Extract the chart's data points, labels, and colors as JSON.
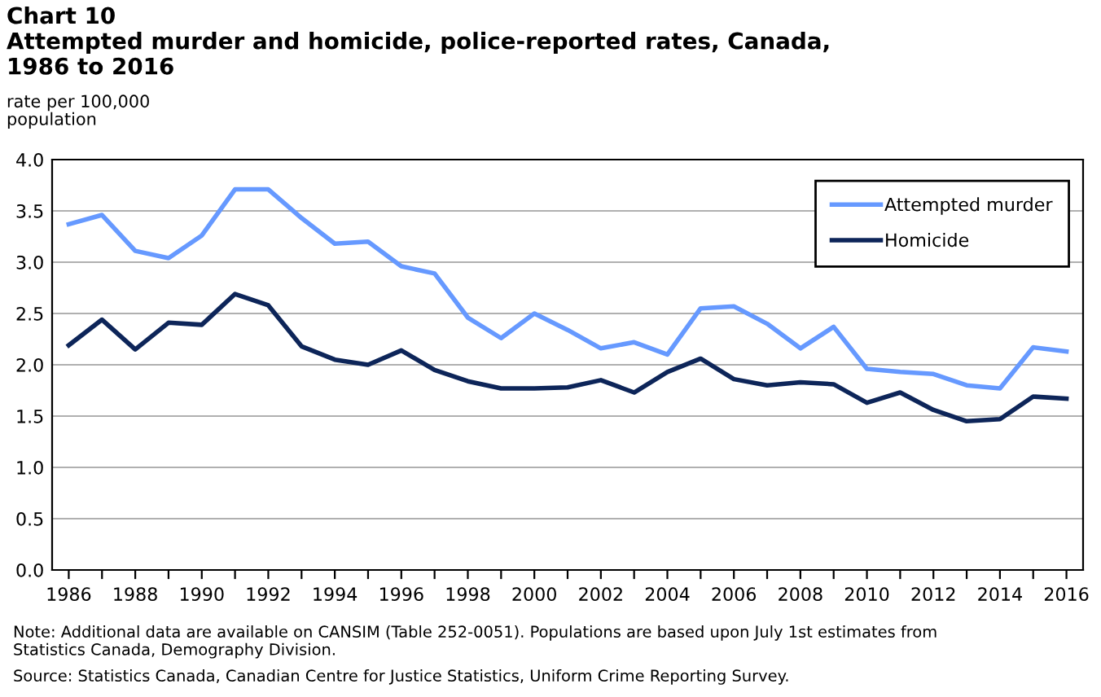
{
  "chart_data": {
    "type": "line",
    "title": "Chart 10\nAttempted murder and homicide, police-reported rates, Canada,\n1986 to 2016",
    "ylabel": "rate per 100,000\npopulation",
    "x": [
      1986,
      1987,
      1988,
      1989,
      1990,
      1991,
      1992,
      1993,
      1994,
      1995,
      1996,
      1997,
      1998,
      1999,
      2000,
      2001,
      2002,
      2003,
      2004,
      2005,
      2006,
      2007,
      2008,
      2009,
      2010,
      2011,
      2012,
      2013,
      2014,
      2015,
      2016
    ],
    "series": [
      {
        "name": "Attempted murder",
        "color": "#6699ff",
        "values": [
          3.37,
          3.46,
          3.11,
          3.04,
          3.26,
          3.71,
          3.71,
          3.43,
          3.18,
          3.2,
          2.96,
          2.89,
          2.46,
          2.26,
          2.5,
          2.34,
          2.16,
          2.22,
          2.1,
          2.55,
          2.57,
          2.4,
          2.16,
          2.37,
          1.96,
          1.93,
          1.91,
          1.8,
          1.77,
          2.17,
          2.13
        ]
      },
      {
        "name": "Homicide",
        "color": "#0d2559",
        "values": [
          2.19,
          2.44,
          2.15,
          2.41,
          2.39,
          2.69,
          2.58,
          2.18,
          2.05,
          2.0,
          2.14,
          1.95,
          1.84,
          1.77,
          1.77,
          1.78,
          1.85,
          1.73,
          1.93,
          2.06,
          1.86,
          1.8,
          1.83,
          1.81,
          1.63,
          1.73,
          1.56,
          1.45,
          1.47,
          1.69,
          1.67
        ]
      }
    ],
    "xlim": [
      1985.5,
      2016.5
    ],
    "xticks": [
      1986,
      {
        "value": 1987,
        "label": null
      },
      1988,
      {
        "value": 1989,
        "label": null
      },
      1990,
      {
        "value": 1991,
        "label": null
      },
      1992,
      {
        "value": 1993,
        "label": null
      },
      1994,
      {
        "value": 1995,
        "label": null
      },
      1996,
      {
        "value": 1997,
        "label": null
      },
      1998,
      {
        "value": 1999,
        "label": null
      },
      2000,
      {
        "value": 2001,
        "label": null
      },
      2002,
      {
        "value": 2003,
        "label": null
      },
      2004,
      {
        "value": 2005,
        "label": null
      },
      2006,
      {
        "value": 2007,
        "label": null
      },
      2008,
      {
        "value": 2009,
        "label": null
      },
      2010,
      {
        "value": 2011,
        "label": null
      },
      2012,
      {
        "value": 2013,
        "label": null
      },
      2014,
      {
        "value": 2015,
        "label": null
      },
      2016
    ],
    "ylim": [
      0,
      4
    ],
    "yticks": [
      {
        "value": 0,
        "label": "0.0"
      },
      {
        "value": 0.5,
        "label": "0.5"
      },
      {
        "value": 1,
        "label": "1.0"
      },
      {
        "value": 1.5,
        "label": "1.5"
      },
      {
        "value": 2,
        "label": "2.0"
      },
      {
        "value": 2.5,
        "label": "2.5"
      },
      {
        "value": 3,
        "label": "3.0"
      },
      {
        "value": 3.5,
        "label": "3.5"
      },
      {
        "value": 4,
        "label": "4.0"
      }
    ],
    "grid": "y",
    "legend": "top right",
    "marker": "none",
    "line_style": "solid",
    "annotations": [
      "Note: Additional data are available on CANSIM (Table 252-0051). Populations are based upon July 1st estimates from\nStatistics Canada, Demography Division.",
      "Source: Statistics Canada, Canadian Centre for Justice Statistics, Uniform Crime Reporting Survey."
    ]
  }
}
